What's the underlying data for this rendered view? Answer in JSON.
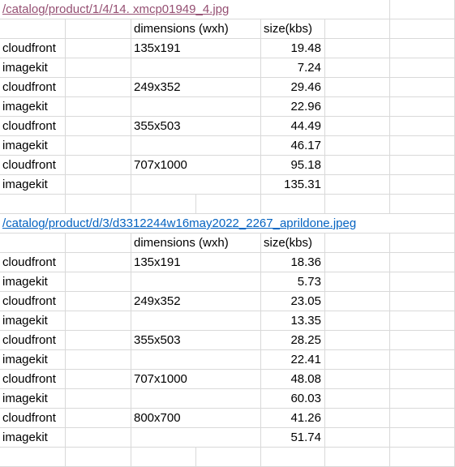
{
  "blocks": [
    {
      "path": "/catalog/product/1/4/14.       xmcp01949_4.jpg",
      "path_style": "visited",
      "header": {
        "dimensions": "dimensions (wxh)",
        "size": "size(kbs)"
      },
      "rows": [
        {
          "cdn": "cloudfront",
          "dims": "135x191",
          "size": "19.48"
        },
        {
          "cdn": "imagekit",
          "dims": "",
          "size": "7.24"
        },
        {
          "cdn": "cloudfront",
          "dims": "249x352",
          "size": "29.46"
        },
        {
          "cdn": "imagekit",
          "dims": "",
          "size": "22.96"
        },
        {
          "cdn": "cloudfront",
          "dims": "355x503",
          "size": "44.49"
        },
        {
          "cdn": "imagekit",
          "dims": "",
          "size": "46.17"
        },
        {
          "cdn": "cloudfront",
          "dims": "707x1000",
          "size": "95.18"
        },
        {
          "cdn": "imagekit",
          "dims": "",
          "size": "135.31"
        }
      ]
    },
    {
      "path": "/catalog/product/d/3/d3312244w16may2022_2267_aprildone.jpeg",
      "path_style": "link",
      "header": {
        "dimensions": "dimensions (wxh)",
        "size": "size(kbs)"
      },
      "rows": [
        {
          "cdn": "cloudfront",
          "dims": "135x191",
          "size": "18.36"
        },
        {
          "cdn": "imagekit",
          "dims": "",
          "size": "5.73"
        },
        {
          "cdn": "cloudfront",
          "dims": "249x352",
          "size": "23.05"
        },
        {
          "cdn": "imagekit",
          "dims": "",
          "size": "13.35"
        },
        {
          "cdn": "cloudfront",
          "dims": "355x503",
          "size": "28.25"
        },
        {
          "cdn": "imagekit",
          "dims": "",
          "size": "22.41"
        },
        {
          "cdn": "cloudfront",
          "dims": "707x1000",
          "size": "48.08"
        },
        {
          "cdn": "imagekit",
          "dims": "",
          "size": "60.03"
        },
        {
          "cdn": "cloudfront",
          "dims": "800x700",
          "size": "41.26"
        },
        {
          "cdn": "imagekit",
          "dims": "",
          "size": "51.74"
        }
      ]
    }
  ]
}
